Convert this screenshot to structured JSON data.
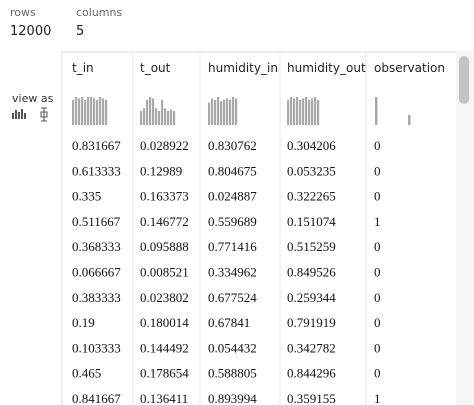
{
  "summary": {
    "rows_label": "rows",
    "rows_value": "12000",
    "columns_label": "columns",
    "columns_value": "5"
  },
  "view_as": "view as",
  "table": {
    "columns": [
      "t_in",
      "t_out",
      "humidity_in",
      "humidity_out",
      "observation"
    ],
    "rows": [
      [
        "0.831667",
        "0.028922",
        "0.830762",
        "0.304206",
        "0"
      ],
      [
        "0.613333",
        "0.12989",
        "0.804675",
        "0.053235",
        "0"
      ],
      [
        "0.335",
        "0.163373",
        "0.024887",
        "0.322265",
        "0"
      ],
      [
        "0.511667",
        "0.146772",
        "0.559689",
        "0.151074",
        "1"
      ],
      [
        "0.368333",
        "0.095888",
        "0.771416",
        "0.515259",
        "0"
      ],
      [
        "0.066667",
        "0.008521",
        "0.334962",
        "0.849526",
        "0"
      ],
      [
        "0.383333",
        "0.023802",
        "0.677524",
        "0.259344",
        "0"
      ],
      [
        "0.19",
        "0.180014",
        "0.67841",
        "0.791919",
        "0"
      ],
      [
        "0.103333",
        "0.144492",
        "0.054432",
        "0.342782",
        "0"
      ],
      [
        "0.465",
        "0.178654",
        "0.588805",
        "0.844296",
        "0"
      ],
      [
        "0.841667",
        "0.136411",
        "0.893994",
        "0.359155",
        "1"
      ]
    ]
  }
}
